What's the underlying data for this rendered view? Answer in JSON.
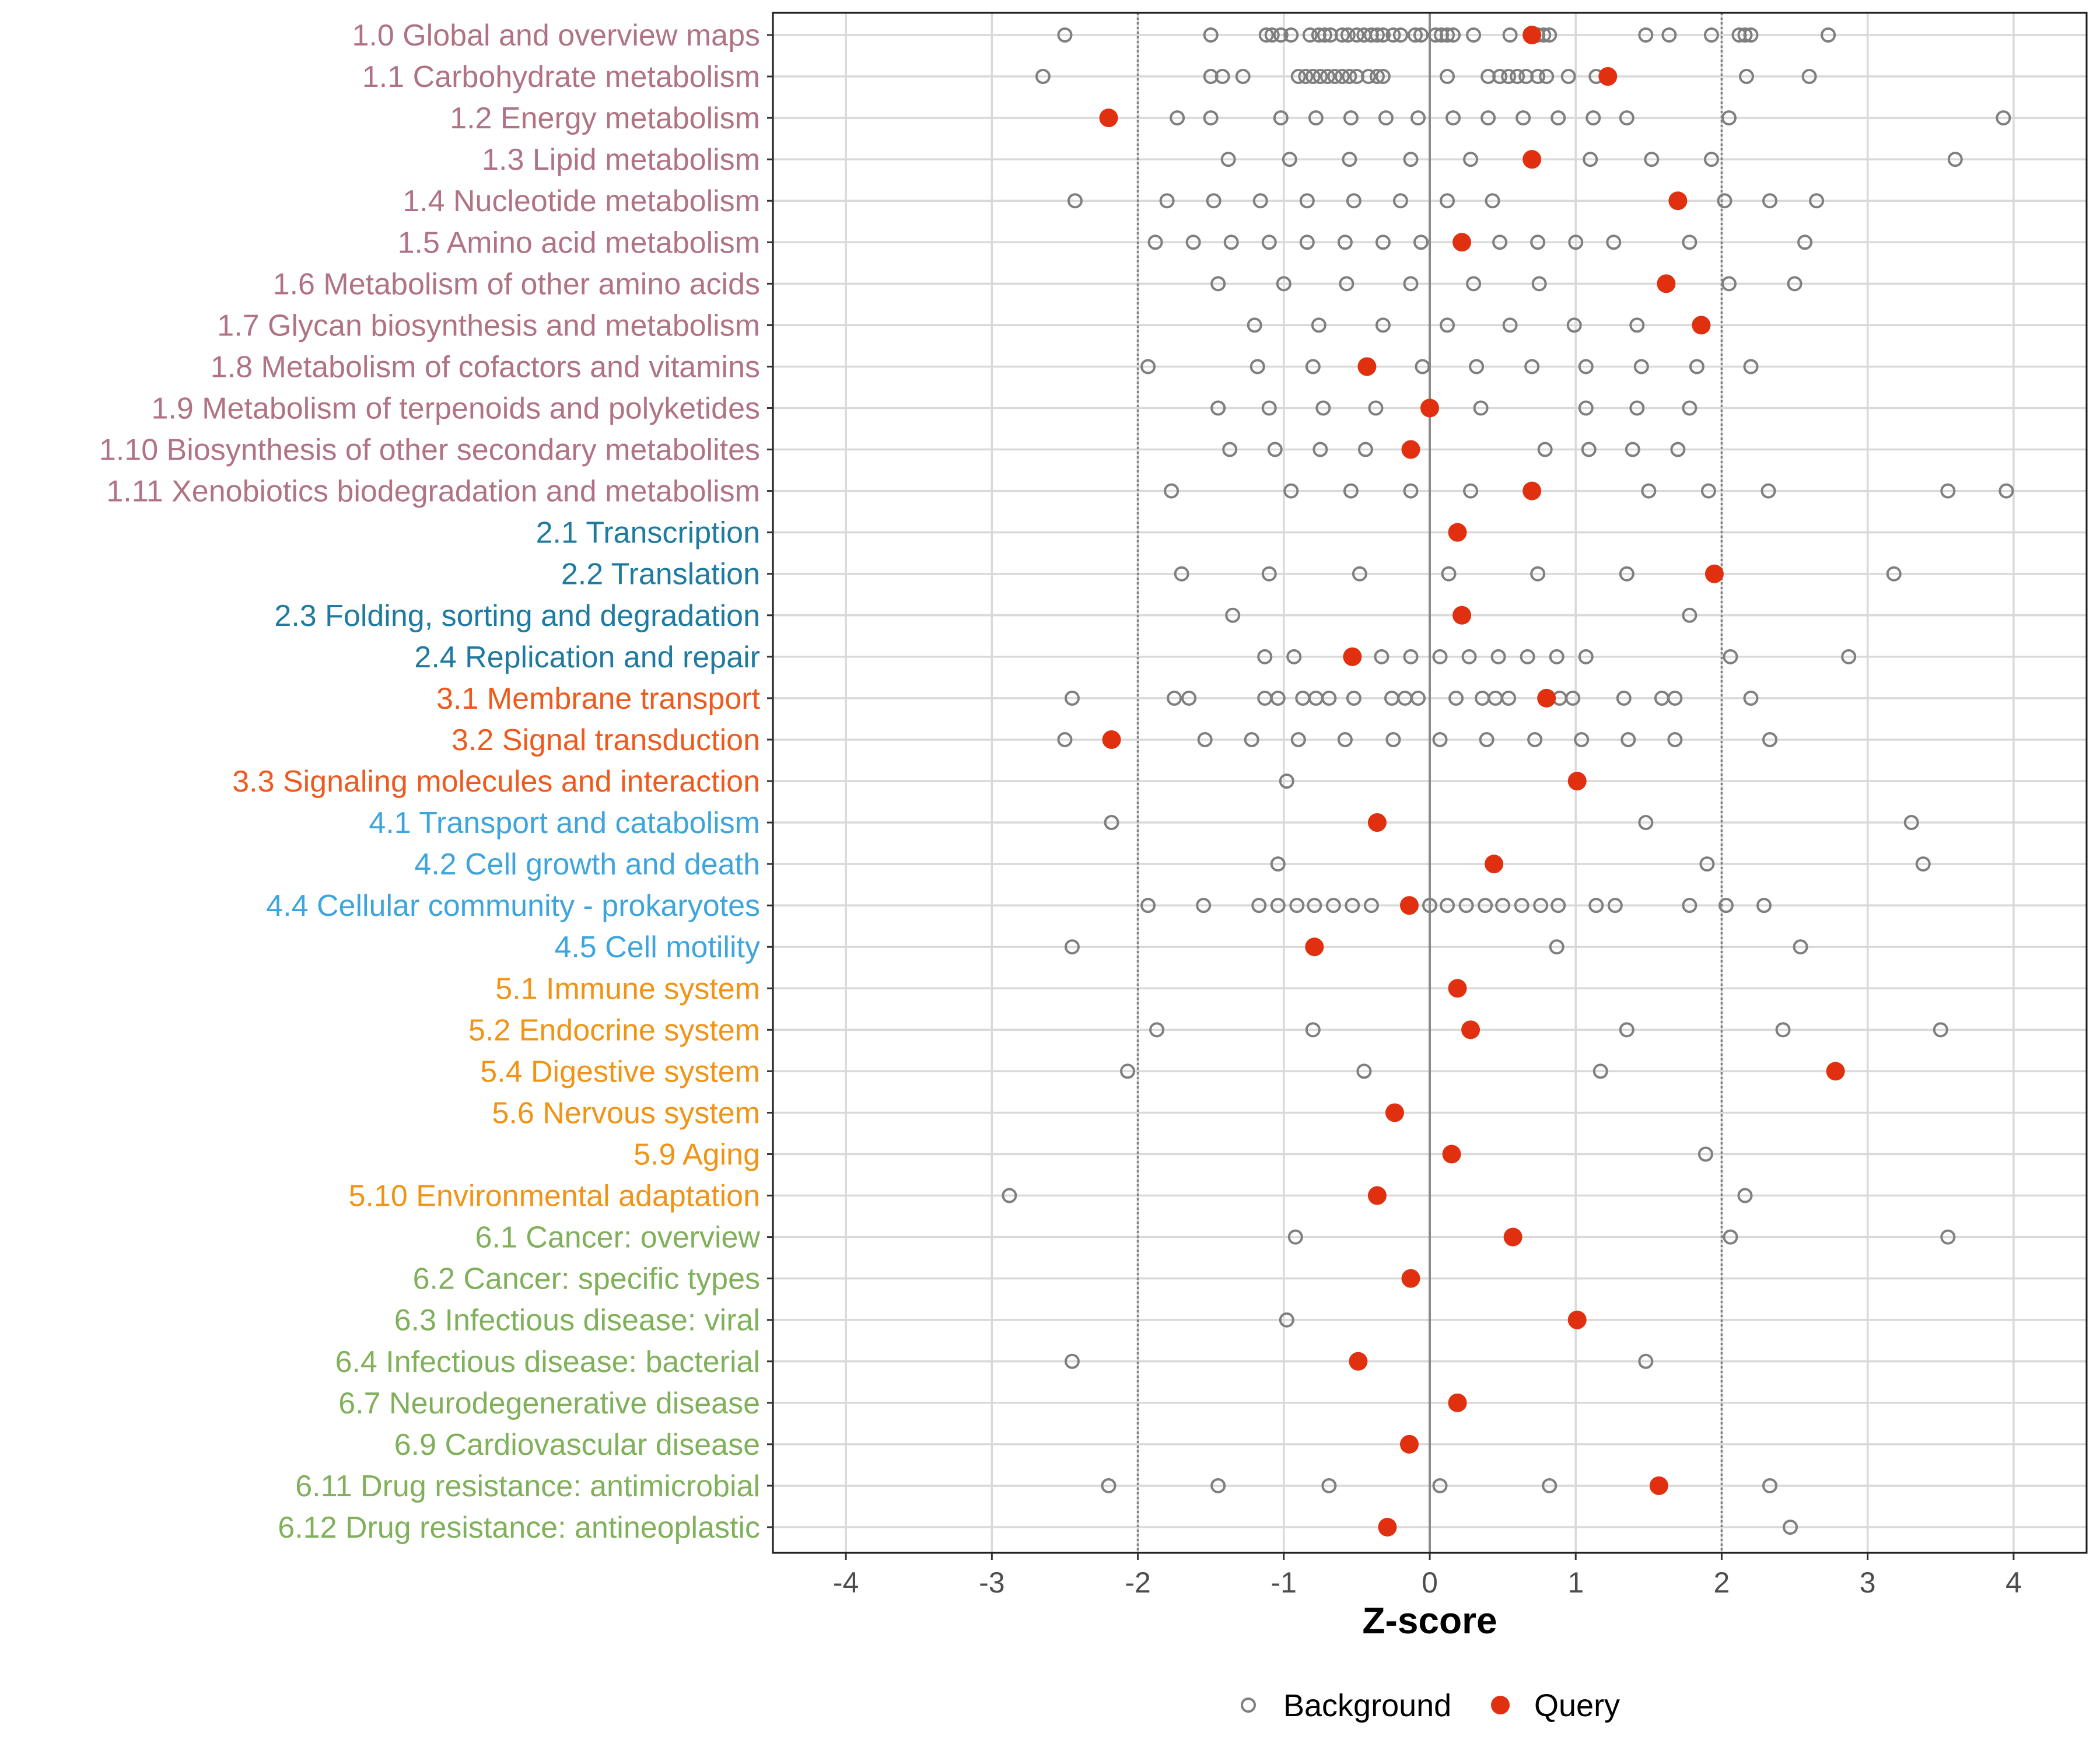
{
  "chart_data": {
    "type": "scatter",
    "title": "",
    "xlabel": "Z-score",
    "ylabel": "",
    "xlim": [
      -4.5,
      4.5
    ],
    "xticks": [
      -4,
      -3,
      -2,
      -1,
      0,
      1,
      2,
      3,
      4
    ],
    "threshold_lines": [
      -2,
      2
    ],
    "zero_line": 0,
    "legend": {
      "position": "bottom",
      "background_label": "Background",
      "query_label": "Query"
    },
    "colors": {
      "query": "#E0300F",
      "background": "#7F7F7F",
      "grid": "#D9D9D9",
      "1": "#B07384",
      "2": "#1F7AA0",
      "3": "#EE5A1E",
      "4": "#3DA5DC",
      "5": "#F19415",
      "6": "#80B05A"
    },
    "categories": [
      {
        "label": "1.0 Global and overview maps",
        "group": "1",
        "query": 0.7,
        "background": [
          -2.5,
          -1.5,
          -1.12,
          -1.08,
          -1.02,
          -0.95,
          -0.82,
          -0.76,
          -0.72,
          -0.68,
          -0.6,
          -0.56,
          -0.5,
          -0.45,
          -0.4,
          -0.36,
          -0.32,
          -0.25,
          -0.2,
          -0.1,
          -0.06,
          0.04,
          0.08,
          0.12,
          0.16,
          0.3,
          0.55,
          0.74,
          0.78,
          0.82,
          1.48,
          1.64,
          1.93,
          2.12,
          2.16,
          2.2,
          2.73
        ]
      },
      {
        "label": "1.1 Carbohydrate metabolism",
        "group": "1",
        "query": 1.22,
        "background": [
          -2.65,
          -1.5,
          -1.42,
          -1.28,
          -0.9,
          -0.85,
          -0.8,
          -0.75,
          -0.7,
          -0.65,
          -0.6,
          -0.55,
          -0.5,
          -0.42,
          -0.36,
          -0.32,
          0.12,
          0.4,
          0.48,
          0.54,
          0.6,
          0.66,
          0.74,
          0.8,
          0.95,
          1.14,
          2.17,
          2.6
        ]
      },
      {
        "label": "1.2 Energy metabolism",
        "group": "1",
        "query": -2.2,
        "background": [
          -1.73,
          -1.5,
          -1.02,
          -0.78,
          -0.54,
          -0.3,
          -0.08,
          0.16,
          0.4,
          0.64,
          0.88,
          1.12,
          1.35,
          2.05,
          3.93
        ]
      },
      {
        "label": "1.3 Lipid metabolism",
        "group": "1",
        "query": 0.7,
        "background": [
          -1.38,
          -0.96,
          -0.55,
          -0.13,
          0.28,
          1.1,
          1.52,
          1.93,
          3.6
        ]
      },
      {
        "label": "1.4 Nucleotide metabolism",
        "group": "1",
        "query": 1.7,
        "background": [
          -2.43,
          -1.8,
          -1.48,
          -1.16,
          -0.84,
          -0.52,
          -0.2,
          0.12,
          0.43,
          2.02,
          2.33,
          2.65
        ]
      },
      {
        "label": "1.5 Amino acid metabolism",
        "group": "1",
        "query": 0.22,
        "background": [
          -1.88,
          -1.62,
          -1.36,
          -1.1,
          -0.84,
          -0.58,
          -0.32,
          -0.06,
          0.48,
          0.74,
          1.0,
          1.26,
          1.78,
          2.57
        ]
      },
      {
        "label": "1.6 Metabolism of other amino acids",
        "group": "1",
        "query": 1.62,
        "background": [
          -1.45,
          -1.0,
          -0.57,
          -0.13,
          0.3,
          0.75,
          2.05,
          2.5
        ]
      },
      {
        "label": "1.7 Glycan biosynthesis and metabolism",
        "group": "1",
        "query": 1.86,
        "background": [
          -1.2,
          -0.76,
          -0.32,
          0.12,
          0.55,
          0.99,
          1.42
        ]
      },
      {
        "label": "1.8 Metabolism of cofactors and vitamins",
        "group": "1",
        "query": -0.43,
        "background": [
          -1.93,
          -1.18,
          -0.8,
          -0.05,
          0.32,
          0.7,
          1.07,
          1.45,
          1.83,
          2.2
        ]
      },
      {
        "label": "1.9 Metabolism of terpenoids and polyketides",
        "group": "1",
        "query": 0.0,
        "background": [
          -1.45,
          -1.1,
          -0.73,
          -0.37,
          0.35,
          1.07,
          1.42,
          1.78
        ]
      },
      {
        "label": "1.10 Biosynthesis of other secondary metabolites",
        "group": "1",
        "query": -0.13,
        "background": [
          -1.37,
          -1.06,
          -0.75,
          -0.44,
          0.79,
          1.09,
          1.39,
          1.7
        ]
      },
      {
        "label": "1.11 Xenobiotics biodegradation and metabolism",
        "group": "1",
        "query": 0.7,
        "background": [
          -1.77,
          -0.95,
          -0.54,
          -0.13,
          0.28,
          1.5,
          1.91,
          2.32,
          3.55,
          3.95
        ]
      },
      {
        "label": "2.1 Transcription",
        "group": "2",
        "query": 0.19,
        "background": []
      },
      {
        "label": "2.2 Translation",
        "group": "2",
        "query": 1.95,
        "background": [
          -1.7,
          -1.1,
          -0.48,
          0.13,
          0.74,
          1.35,
          3.18
        ]
      },
      {
        "label": "2.3 Folding, sorting and degradation",
        "group": "2",
        "query": 0.22,
        "background": [
          -1.35,
          1.78
        ]
      },
      {
        "label": "2.4 Replication and repair",
        "group": "2",
        "query": -0.53,
        "background": [
          -1.13,
          -0.93,
          -0.33,
          -0.13,
          0.07,
          0.27,
          0.47,
          0.67,
          0.87,
          1.07,
          2.06,
          2.87
        ]
      },
      {
        "label": "3.1 Membrane transport",
        "group": "3",
        "query": 0.8,
        "background": [
          -2.45,
          -1.75,
          -1.65,
          -1.13,
          -1.04,
          -0.87,
          -0.78,
          -0.69,
          -0.52,
          -0.26,
          -0.17,
          -0.08,
          0.18,
          0.36,
          0.45,
          0.54,
          0.89,
          0.98,
          1.33,
          1.59,
          1.68,
          2.2
        ]
      },
      {
        "label": "3.2 Signal transduction",
        "group": "3",
        "query": -2.18,
        "background": [
          -2.5,
          -1.54,
          -1.22,
          -0.9,
          -0.58,
          -0.25,
          0.07,
          0.39,
          0.72,
          1.04,
          1.36,
          1.68,
          2.33
        ]
      },
      {
        "label": "3.3 Signaling molecules and interaction",
        "group": "3",
        "query": 1.01,
        "background": [
          -0.98
        ]
      },
      {
        "label": "4.1 Transport and catabolism",
        "group": "4",
        "query": -0.36,
        "background": [
          -2.18,
          1.48,
          3.3
        ]
      },
      {
        "label": "4.2 Cell growth and death",
        "group": "4",
        "query": 0.44,
        "background": [
          -1.04,
          1.9,
          3.38
        ]
      },
      {
        "label": "4.4 Cellular community - prokaryotes",
        "group": "4",
        "query": -0.14,
        "background": [
          -1.93,
          -1.55,
          -1.17,
          -1.04,
          -0.91,
          -0.79,
          -0.66,
          -0.53,
          -0.4,
          0.0,
          0.12,
          0.25,
          0.38,
          0.5,
          0.63,
          0.76,
          0.88,
          1.14,
          1.27,
          1.78,
          2.03,
          2.29
        ]
      },
      {
        "label": "4.5 Cell motility",
        "group": "4",
        "query": -0.79,
        "background": [
          -2.45,
          0.87,
          2.54
        ]
      },
      {
        "label": "5.1 Immune system",
        "group": "5",
        "query": 0.19,
        "background": []
      },
      {
        "label": "5.2 Endocrine system",
        "group": "5",
        "query": 0.28,
        "background": [
          -1.87,
          -0.8,
          1.35,
          2.42,
          3.5
        ]
      },
      {
        "label": "5.4 Digestive system",
        "group": "5",
        "query": 2.78,
        "background": [
          -2.07,
          -0.45,
          1.17
        ]
      },
      {
        "label": "5.6 Nervous system",
        "group": "5",
        "query": -0.24,
        "background": []
      },
      {
        "label": "5.9 Aging",
        "group": "5",
        "query": 0.15,
        "background": [
          1.89
        ]
      },
      {
        "label": "5.10 Environmental adaptation",
        "group": "5",
        "query": -0.36,
        "background": [
          -2.88,
          2.16
        ]
      },
      {
        "label": "6.1 Cancer: overview",
        "group": "6",
        "query": 0.57,
        "background": [
          -0.92,
          2.06,
          3.55
        ]
      },
      {
        "label": "6.2 Cancer: specific types",
        "group": "6",
        "query": -0.13,
        "background": []
      },
      {
        "label": "6.3 Infectious disease: viral",
        "group": "6",
        "query": 1.01,
        "background": [
          -0.98
        ]
      },
      {
        "label": "6.4 Infectious disease: bacterial",
        "group": "6",
        "query": -0.49,
        "background": [
          -2.45,
          1.48
        ]
      },
      {
        "label": "6.7 Neurodegenerative disease",
        "group": "6",
        "query": 0.19,
        "background": []
      },
      {
        "label": "6.9 Cardiovascular disease",
        "group": "6",
        "query": -0.14,
        "background": []
      },
      {
        "label": "6.11 Drug resistance: antimicrobial",
        "group": "6",
        "query": 1.57,
        "background": [
          -2.2,
          -1.45,
          -0.69,
          0.07,
          0.82,
          2.33
        ]
      },
      {
        "label": "6.12 Drug resistance: antineoplastic",
        "group": "6",
        "query": -0.29,
        "background": [
          2.47
        ]
      }
    ]
  }
}
